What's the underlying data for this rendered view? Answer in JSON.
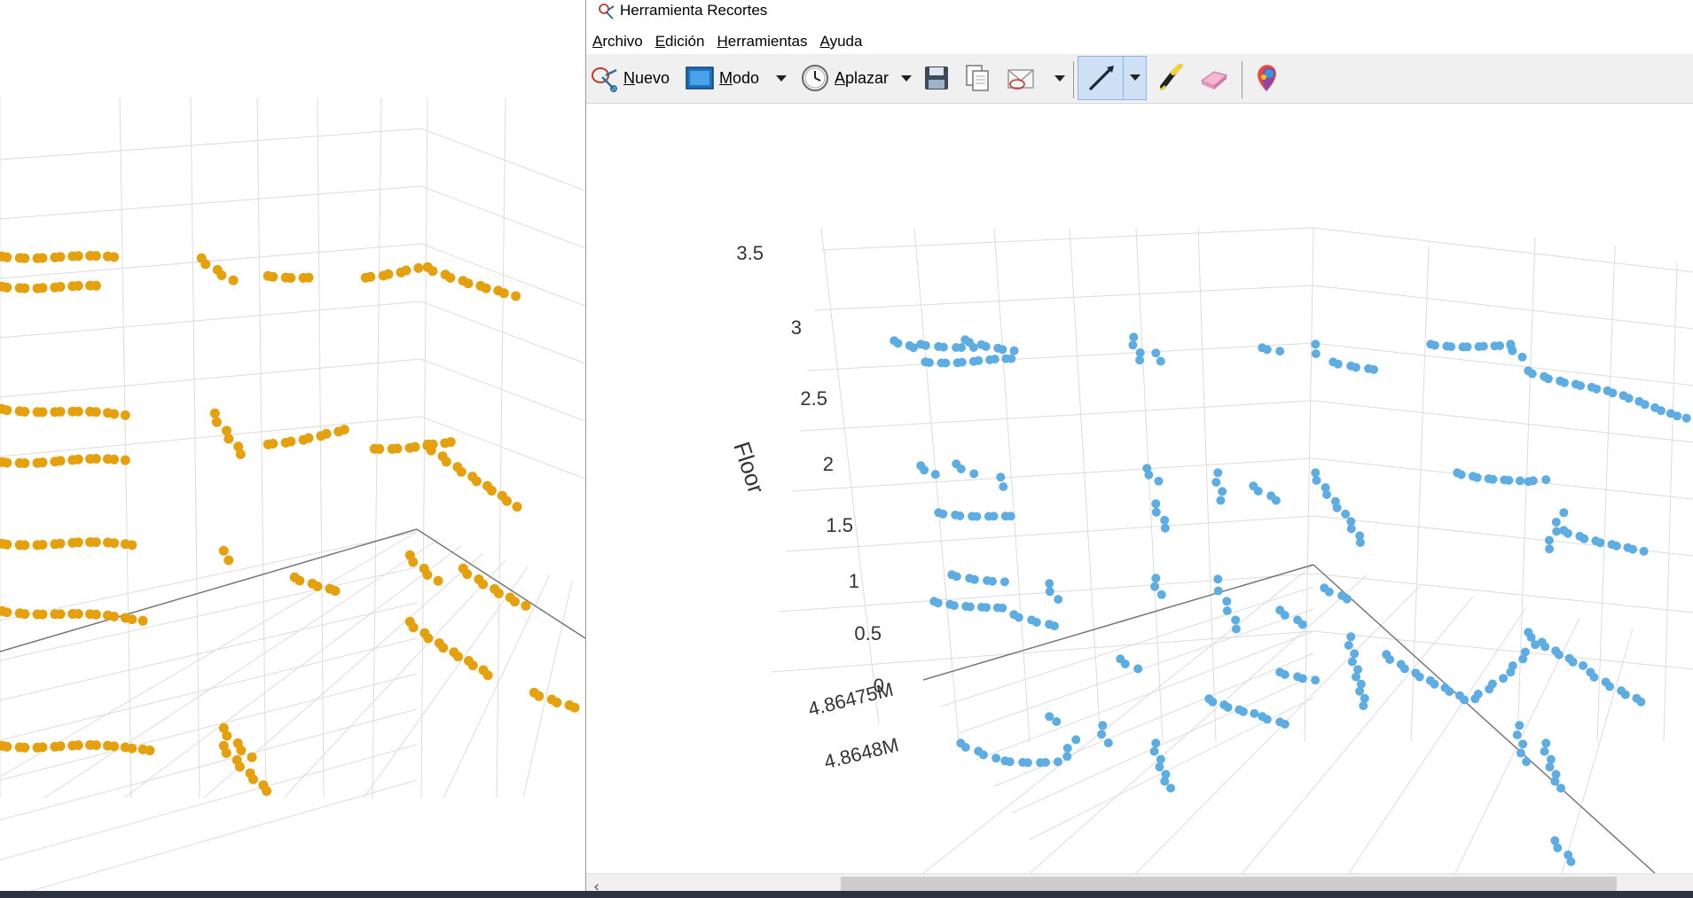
{
  "window": {
    "title": "Herramienta Recortes"
  },
  "menu": {
    "items": [
      "Archivo",
      "Edición",
      "Herramientas",
      "Ayuda"
    ]
  },
  "toolbar": {
    "new_label": "Nuevo",
    "mode_label": "Modo",
    "delay_label": "Aplazar",
    "icons": [
      "new-snip-icon",
      "mode-icon",
      "clock-icon",
      "save-icon",
      "copy-icon",
      "send-email-icon",
      "pen-icon",
      "highlighter-icon",
      "eraser-icon",
      "paint3d-icon"
    ]
  },
  "left_plot": {
    "color": "#e5a00d",
    "description_visible": false
  },
  "right_plot": {
    "color": "#5dade2",
    "z_axis_title": "Floor",
    "z_ticks": [
      "3.5",
      "3",
      "2.5",
      "2",
      "1.5",
      "1",
      "0.5",
      "0"
    ],
    "y_ticks": [
      "4.86475M",
      "4.8648M"
    ]
  },
  "colors": {
    "toolbar_bg": "#f0f0f0",
    "pen_active": "#cde0f5",
    "orange_points": "#e5a00d",
    "blue_points": "#5dade2"
  }
}
